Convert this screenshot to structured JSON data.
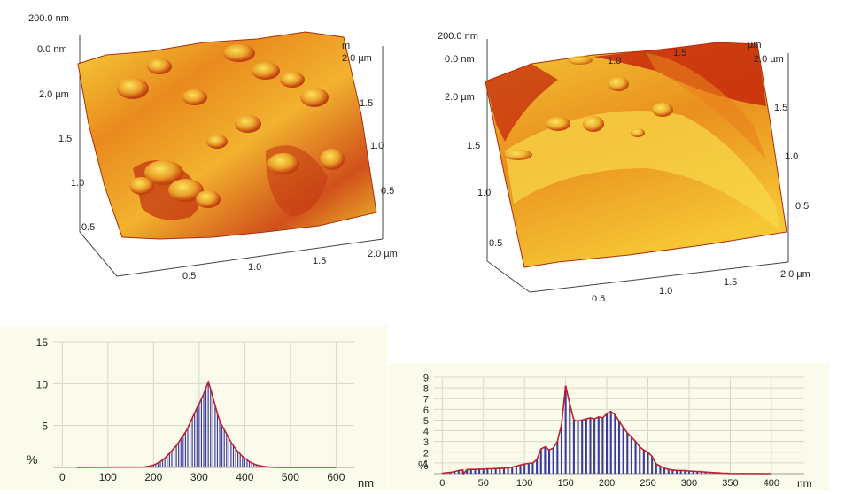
{
  "afm_images": [
    {
      "z_top": "200.0 nm",
      "z_bottom": "0.0 nm",
      "y_ticks": [
        "2.0 µm",
        "1.5",
        "1.0",
        "0.5"
      ],
      "right_ticks": [
        "2.0 µm",
        "1.5",
        "1.0",
        "0.5"
      ],
      "x_ticks": [
        "0.5",
        "1.0",
        "1.5",
        "2.0 µm"
      ],
      "back_ticks": [
        "m"
      ],
      "colors": {
        "dark": "#b8280c",
        "mid": "#e88a1c",
        "light": "#f7d43c"
      }
    },
    {
      "z_top": "200.0 nm",
      "z_bottom": "0.0 nm",
      "y_ticks": [
        "2.0 µm",
        "1.5",
        "1.0",
        "0.5"
      ],
      "right_ticks": [
        "2.0 µm",
        "1.5",
        "1.0",
        "0.5"
      ],
      "x_ticks": [
        "0.5",
        "1.0",
        "1.5",
        "2.0 µm"
      ],
      "back_ticks": [
        "1.0",
        "1.5",
        "µm"
      ],
      "colors": {
        "dark": "#c0200a",
        "mid": "#e9861e",
        "light": "#f8d838"
      }
    }
  ],
  "chart_data": [
    {
      "type": "bar",
      "xlabel": "nm",
      "ylabel": "%",
      "xlim": [
        -20,
        640
      ],
      "ylim": [
        0,
        15
      ],
      "x_ticks": [
        0,
        100,
        200,
        300,
        400,
        500,
        600
      ],
      "y_ticks": [
        5,
        10,
        15
      ],
      "bar_color": "#3a3aa0",
      "line_color": "#c0202a",
      "x": [
        180,
        185,
        190,
        195,
        200,
        205,
        210,
        215,
        220,
        225,
        230,
        235,
        240,
        245,
        250,
        255,
        260,
        265,
        270,
        275,
        280,
        285,
        290,
        295,
        300,
        305,
        310,
        315,
        320,
        325,
        330,
        335,
        340,
        345,
        350,
        355,
        360,
        365,
        370,
        375,
        380,
        385,
        390,
        395,
        400,
        405,
        410,
        415,
        420,
        425,
        430,
        435,
        440,
        445,
        450,
        455,
        460,
        465,
        470,
        475,
        480
      ],
      "values": [
        0.05,
        0.1,
        0.15,
        0.2,
        0.3,
        0.4,
        0.55,
        0.7,
        0.9,
        1.1,
        1.4,
        1.7,
        2.0,
        2.3,
        2.6,
        3.0,
        3.4,
        3.8,
        4.2,
        4.7,
        5.3,
        5.9,
        6.5,
        7.1,
        7.6,
        8.2,
        8.8,
        9.5,
        10.2,
        9.4,
        8.4,
        7.4,
        6.4,
        5.6,
        5.0,
        4.5,
        4.0,
        3.5,
        3.0,
        2.6,
        2.2,
        1.9,
        1.6,
        1.3,
        1.1,
        0.9,
        0.7,
        0.55,
        0.42,
        0.32,
        0.24,
        0.18,
        0.13,
        0.09,
        0.06,
        0.04,
        0.03,
        0.02,
        0.01,
        0.01,
        0.0
      ]
    },
    {
      "type": "bar",
      "xlabel": "nm",
      "ylabel": "%",
      "xlim": [
        -10,
        440
      ],
      "ylim": [
        0,
        9
      ],
      "x_ticks": [
        0,
        50,
        100,
        150,
        200,
        250,
        300,
        350,
        400
      ],
      "y_ticks": [
        1,
        2,
        3,
        4,
        5,
        6,
        7,
        8,
        9
      ],
      "bar_color": "#3a3aa0",
      "line_color": "#c0202a",
      "x": [
        0,
        5,
        10,
        15,
        20,
        25,
        30,
        35,
        40,
        45,
        50,
        55,
        60,
        65,
        70,
        75,
        80,
        85,
        90,
        95,
        100,
        105,
        110,
        115,
        120,
        125,
        130,
        135,
        140,
        145,
        150,
        155,
        160,
        165,
        170,
        175,
        180,
        185,
        190,
        195,
        200,
        205,
        210,
        215,
        220,
        225,
        230,
        235,
        240,
        245,
        250,
        255,
        260,
        265,
        270,
        275,
        280,
        285,
        290,
        295,
        300,
        305,
        310,
        315,
        320,
        325,
        330,
        335,
        340,
        345,
        350
      ],
      "values": [
        0.05,
        0.08,
        0.12,
        0.2,
        0.3,
        0.35,
        0.38,
        0.4,
        0.4,
        0.42,
        0.42,
        0.45,
        0.45,
        0.48,
        0.5,
        0.5,
        0.55,
        0.6,
        0.7,
        0.8,
        0.9,
        0.95,
        1.0,
        1.3,
        2.3,
        2.5,
        2.2,
        2.4,
        3.0,
        4.6,
        8.2,
        6.5,
        5.0,
        4.9,
        5.0,
        5.1,
        5.2,
        5.1,
        5.3,
        5.2,
        5.6,
        5.8,
        5.5,
        4.9,
        4.3,
        3.8,
        3.4,
        3.0,
        2.5,
        2.2,
        2.0,
        1.6,
        0.9,
        0.7,
        0.5,
        0.4,
        0.35,
        0.3,
        0.3,
        0.28,
        0.25,
        0.22,
        0.2,
        0.18,
        0.15,
        0.12,
        0.1,
        0.08,
        0.05,
        0.03,
        0.02
      ]
    }
  ]
}
